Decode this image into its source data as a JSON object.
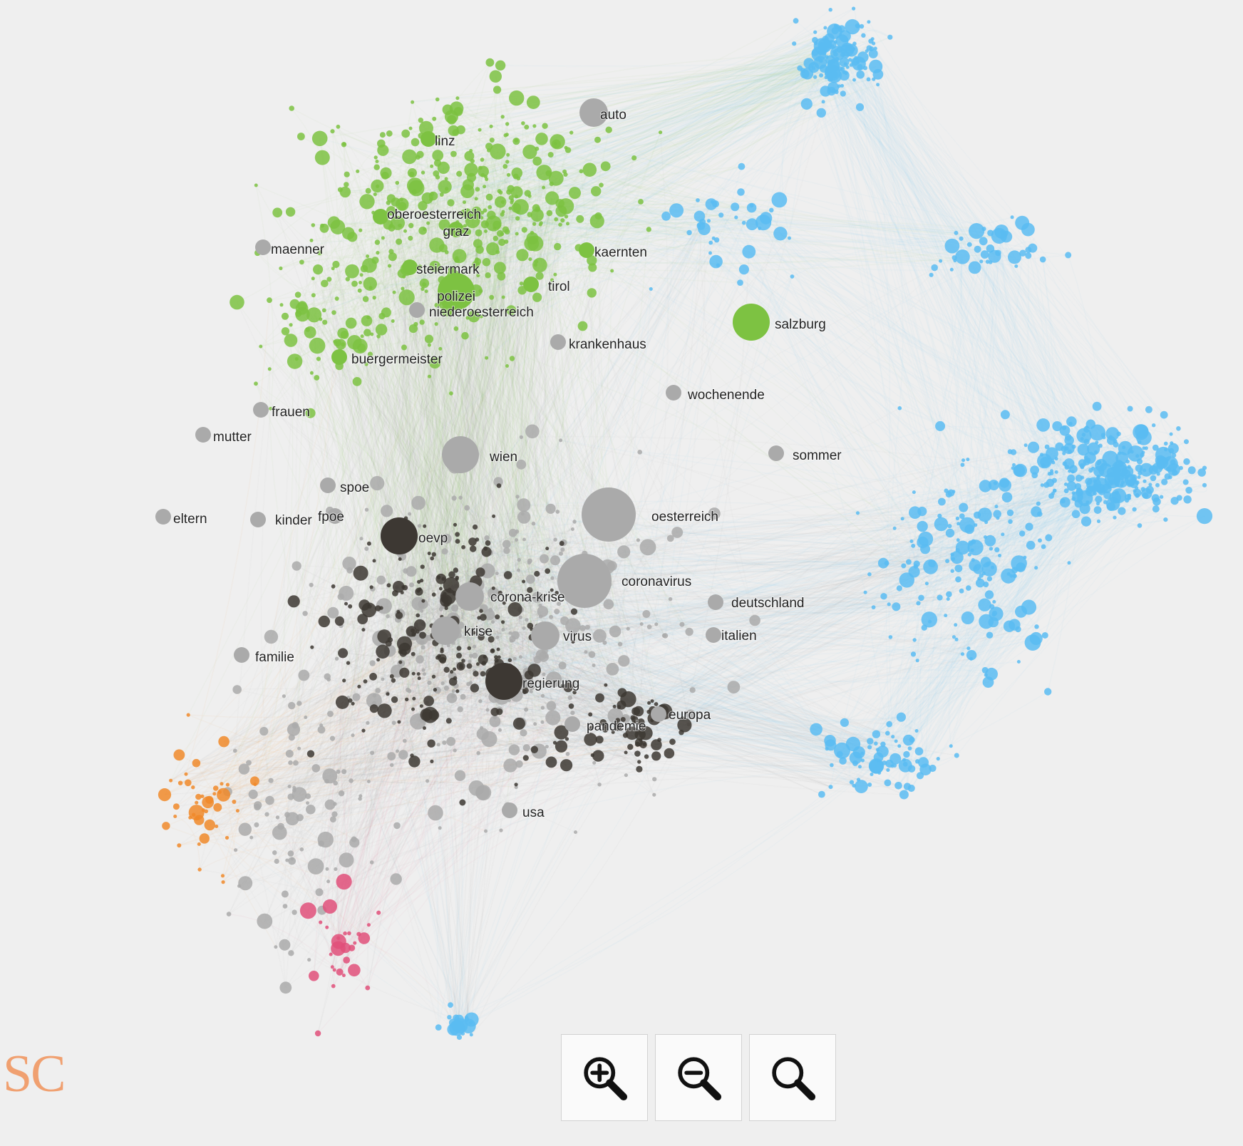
{
  "app": {
    "logo_text": "SC"
  },
  "colors": {
    "background": "#efefef",
    "cluster_green": "#7dc242",
    "cluster_blue": "#5bbcf2",
    "cluster_grey": "#aaaaaa",
    "cluster_dark": "#3d3833",
    "cluster_orange": "#f08a2a",
    "cluster_pink": "#e0507a",
    "logo": "#f0a070"
  },
  "toolbar": {
    "zoom_in_icon": "zoom-in-icon",
    "zoom_out_icon": "zoom-out-icon",
    "reset_zoom_icon": "search-icon"
  },
  "graph": {
    "type": "keyword co-occurrence network",
    "clusters": [
      "green",
      "blue",
      "grey",
      "dark",
      "orange",
      "pink"
    ],
    "labeled_nodes": [
      {
        "label": "auto",
        "cluster": "grey",
        "size": "medium"
      },
      {
        "label": "linz",
        "cluster": "green",
        "size": "small"
      },
      {
        "label": "oberoesterreich",
        "cluster": "green",
        "size": "small"
      },
      {
        "label": "graz",
        "cluster": "green",
        "size": "small"
      },
      {
        "label": "maenner",
        "cluster": "grey",
        "size": "small"
      },
      {
        "label": "kaernten",
        "cluster": "green",
        "size": "small"
      },
      {
        "label": "steiermark",
        "cluster": "green",
        "size": "small"
      },
      {
        "label": "tirol",
        "cluster": "green",
        "size": "small"
      },
      {
        "label": "polizei",
        "cluster": "green",
        "size": "large"
      },
      {
        "label": "niederoesterreich",
        "cluster": "grey",
        "size": "small"
      },
      {
        "label": "salzburg",
        "cluster": "green",
        "size": "large"
      },
      {
        "label": "krankenhaus",
        "cluster": "grey",
        "size": "small"
      },
      {
        "label": "buergermeister",
        "cluster": "green",
        "size": "small"
      },
      {
        "label": "wochenende",
        "cluster": "grey",
        "size": "small"
      },
      {
        "label": "frauen",
        "cluster": "grey",
        "size": "small"
      },
      {
        "label": "mutter",
        "cluster": "grey",
        "size": "small"
      },
      {
        "label": "wien",
        "cluster": "grey",
        "size": "large"
      },
      {
        "label": "sommer",
        "cluster": "grey",
        "size": "small"
      },
      {
        "label": "spoe",
        "cluster": "grey",
        "size": "small"
      },
      {
        "label": "eltern",
        "cluster": "grey",
        "size": "small"
      },
      {
        "label": "kinder",
        "cluster": "grey",
        "size": "small"
      },
      {
        "label": "fpoe",
        "cluster": "grey",
        "size": "small"
      },
      {
        "label": "oesterreich",
        "cluster": "grey",
        "size": "largest"
      },
      {
        "label": "oevp",
        "cluster": "dark",
        "size": "large"
      },
      {
        "label": "coronavirus",
        "cluster": "grey",
        "size": "largest"
      },
      {
        "label": "corona-krise",
        "cluster": "grey",
        "size": "medium"
      },
      {
        "label": "deutschland",
        "cluster": "grey",
        "size": "small"
      },
      {
        "label": "krise",
        "cluster": "grey",
        "size": "medium"
      },
      {
        "label": "virus",
        "cluster": "grey",
        "size": "medium"
      },
      {
        "label": "italien",
        "cluster": "grey",
        "size": "small"
      },
      {
        "label": "familie",
        "cluster": "grey",
        "size": "small"
      },
      {
        "label": "regierung",
        "cluster": "dark",
        "size": "large"
      },
      {
        "label": "europa",
        "cluster": "grey",
        "size": "small"
      },
      {
        "label": "pandemie",
        "cluster": "grey",
        "size": "small"
      },
      {
        "label": "usa",
        "cluster": "grey",
        "size": "small"
      }
    ]
  }
}
